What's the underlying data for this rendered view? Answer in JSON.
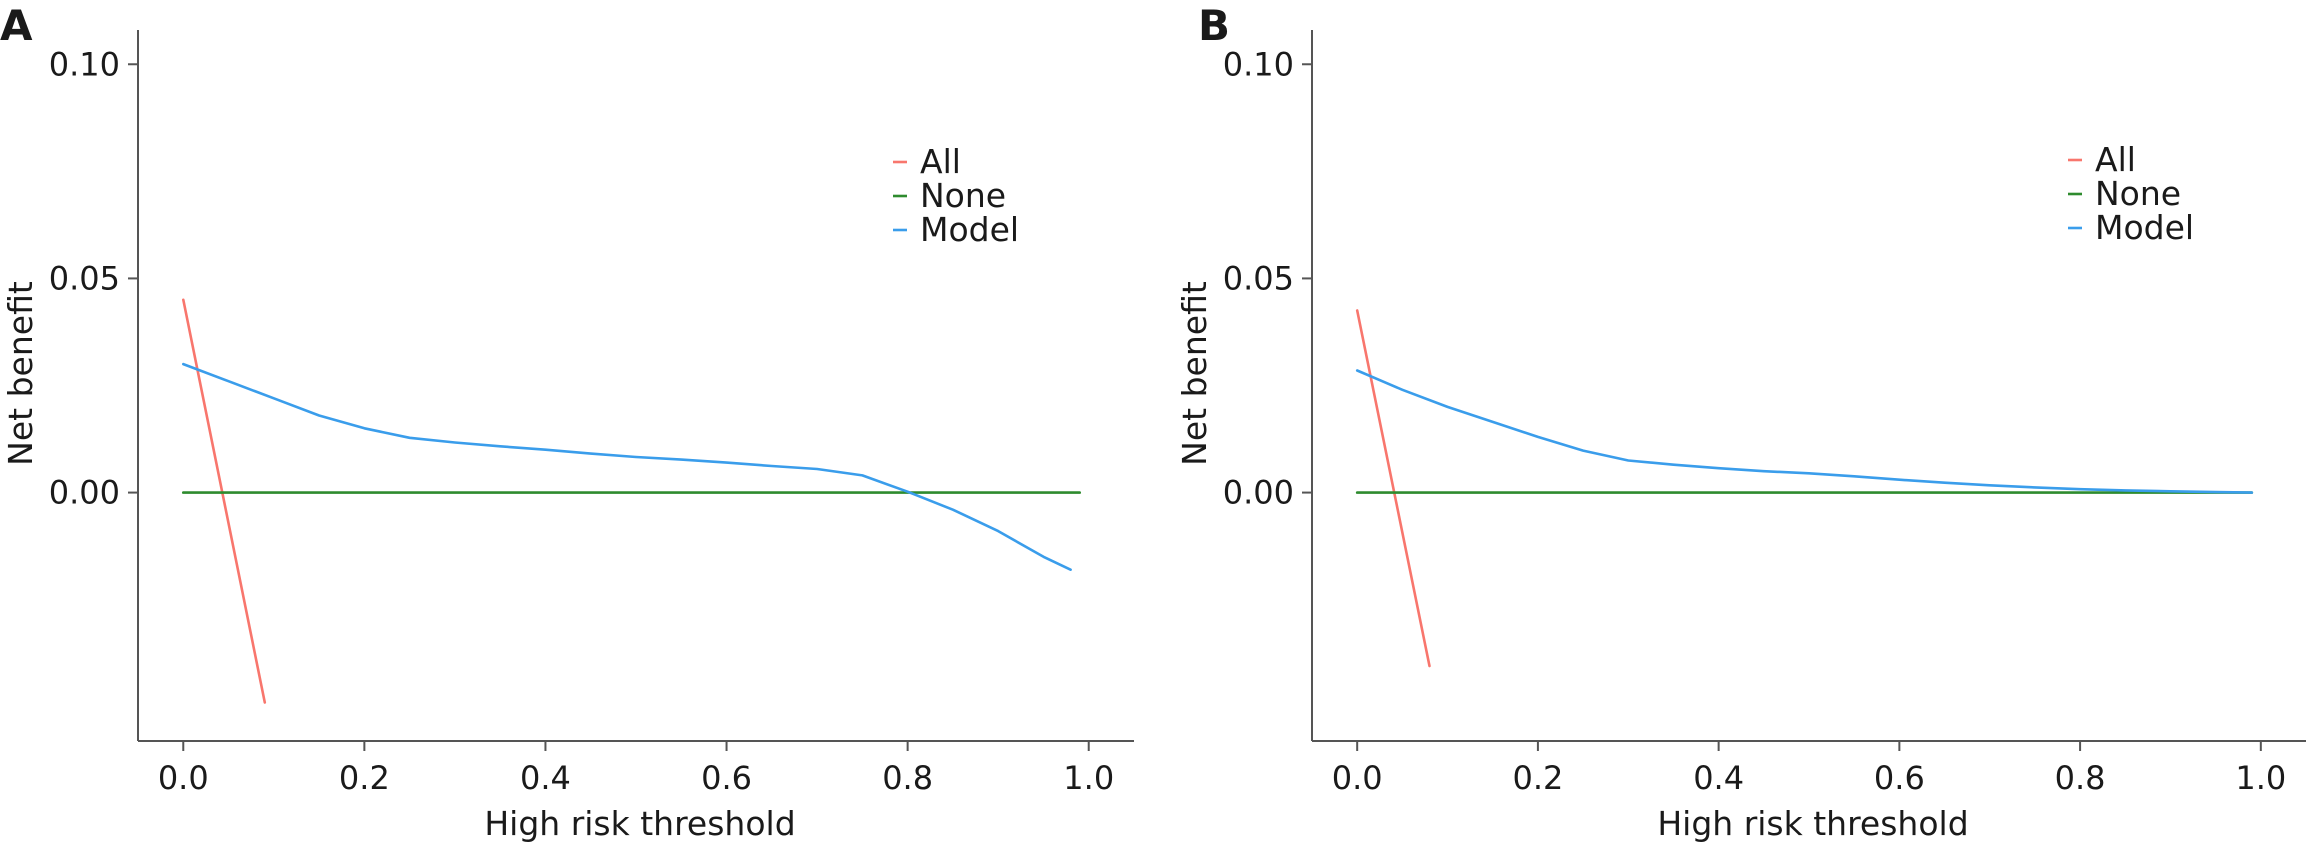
{
  "chart_data": [
    {
      "type": "line",
      "panel_label": "A",
      "xlabel": "High risk threshold",
      "ylabel": "Net benefit",
      "xlim": [
        -0.05,
        1.05
      ],
      "ylim": [
        -0.058,
        0.108
      ],
      "xticks": [
        0.0,
        0.2,
        0.4,
        0.6,
        0.8,
        1.0
      ],
      "xtick_labels": [
        "0.0",
        "0.2",
        "0.4",
        "0.6",
        "0.8",
        "1.0"
      ],
      "yticks": [
        0.0,
        0.05,
        0.1
      ],
      "ytick_labels": [
        "0.00",
        "0.05",
        "0.10"
      ],
      "grid": false,
      "legend_position": "top-right",
      "series": [
        {
          "name": "All",
          "color": "#F8766D",
          "x": [
            0.0,
            0.09
          ],
          "y": [
            0.045,
            -0.049
          ]
        },
        {
          "name": "None",
          "color": "#2E8B2E",
          "x": [
            0.0,
            0.99
          ],
          "y": [
            0.0,
            0.0
          ]
        },
        {
          "name": "Model",
          "color": "#3A9DEB",
          "x": [
            0.0,
            0.05,
            0.1,
            0.15,
            0.2,
            0.25,
            0.3,
            0.35,
            0.4,
            0.45,
            0.5,
            0.55,
            0.6,
            0.65,
            0.7,
            0.75,
            0.8,
            0.85,
            0.9,
            0.95,
            0.98
          ],
          "y": [
            0.03,
            0.026,
            0.022,
            0.018,
            0.015,
            0.0128,
            0.0117,
            0.0108,
            0.01,
            0.0091,
            0.0083,
            0.0077,
            0.007,
            0.0062,
            0.0055,
            0.004,
            0.0002,
            -0.004,
            -0.009,
            -0.015,
            -0.018
          ]
        }
      ]
    },
    {
      "type": "line",
      "panel_label": "B",
      "xlabel": "High risk threshold",
      "ylabel": "Net benefit",
      "xlim": [
        -0.05,
        1.05
      ],
      "ylim": [
        -0.058,
        0.108
      ],
      "xticks": [
        0.0,
        0.2,
        0.4,
        0.6,
        0.8,
        1.0
      ],
      "xtick_labels": [
        "0.0",
        "0.2",
        "0.4",
        "0.6",
        "0.8",
        "1.0"
      ],
      "yticks": [
        0.0,
        0.05,
        0.1
      ],
      "ytick_labels": [
        "0.00",
        "0.05",
        "0.10"
      ],
      "grid": false,
      "legend_position": "top-right",
      "series": [
        {
          "name": "All",
          "color": "#F8766D",
          "x": [
            0.0,
            0.08
          ],
          "y": [
            0.0425,
            -0.0405
          ]
        },
        {
          "name": "None",
          "color": "#2E8B2E",
          "x": [
            0.0,
            0.99
          ],
          "y": [
            0.0,
            0.0
          ]
        },
        {
          "name": "Model",
          "color": "#3A9DEB",
          "x": [
            0.0,
            0.05,
            0.1,
            0.15,
            0.2,
            0.25,
            0.3,
            0.35,
            0.4,
            0.45,
            0.5,
            0.55,
            0.6,
            0.65,
            0.7,
            0.75,
            0.8,
            0.85,
            0.9,
            0.95,
            0.99
          ],
          "y": [
            0.0285,
            0.024,
            0.02,
            0.0165,
            0.013,
            0.0098,
            0.0075,
            0.0065,
            0.0057,
            0.005,
            0.0045,
            0.0038,
            0.003,
            0.0023,
            0.0017,
            0.0012,
            0.0008,
            0.0005,
            0.0003,
            0.0001,
            0.0
          ]
        }
      ]
    }
  ]
}
